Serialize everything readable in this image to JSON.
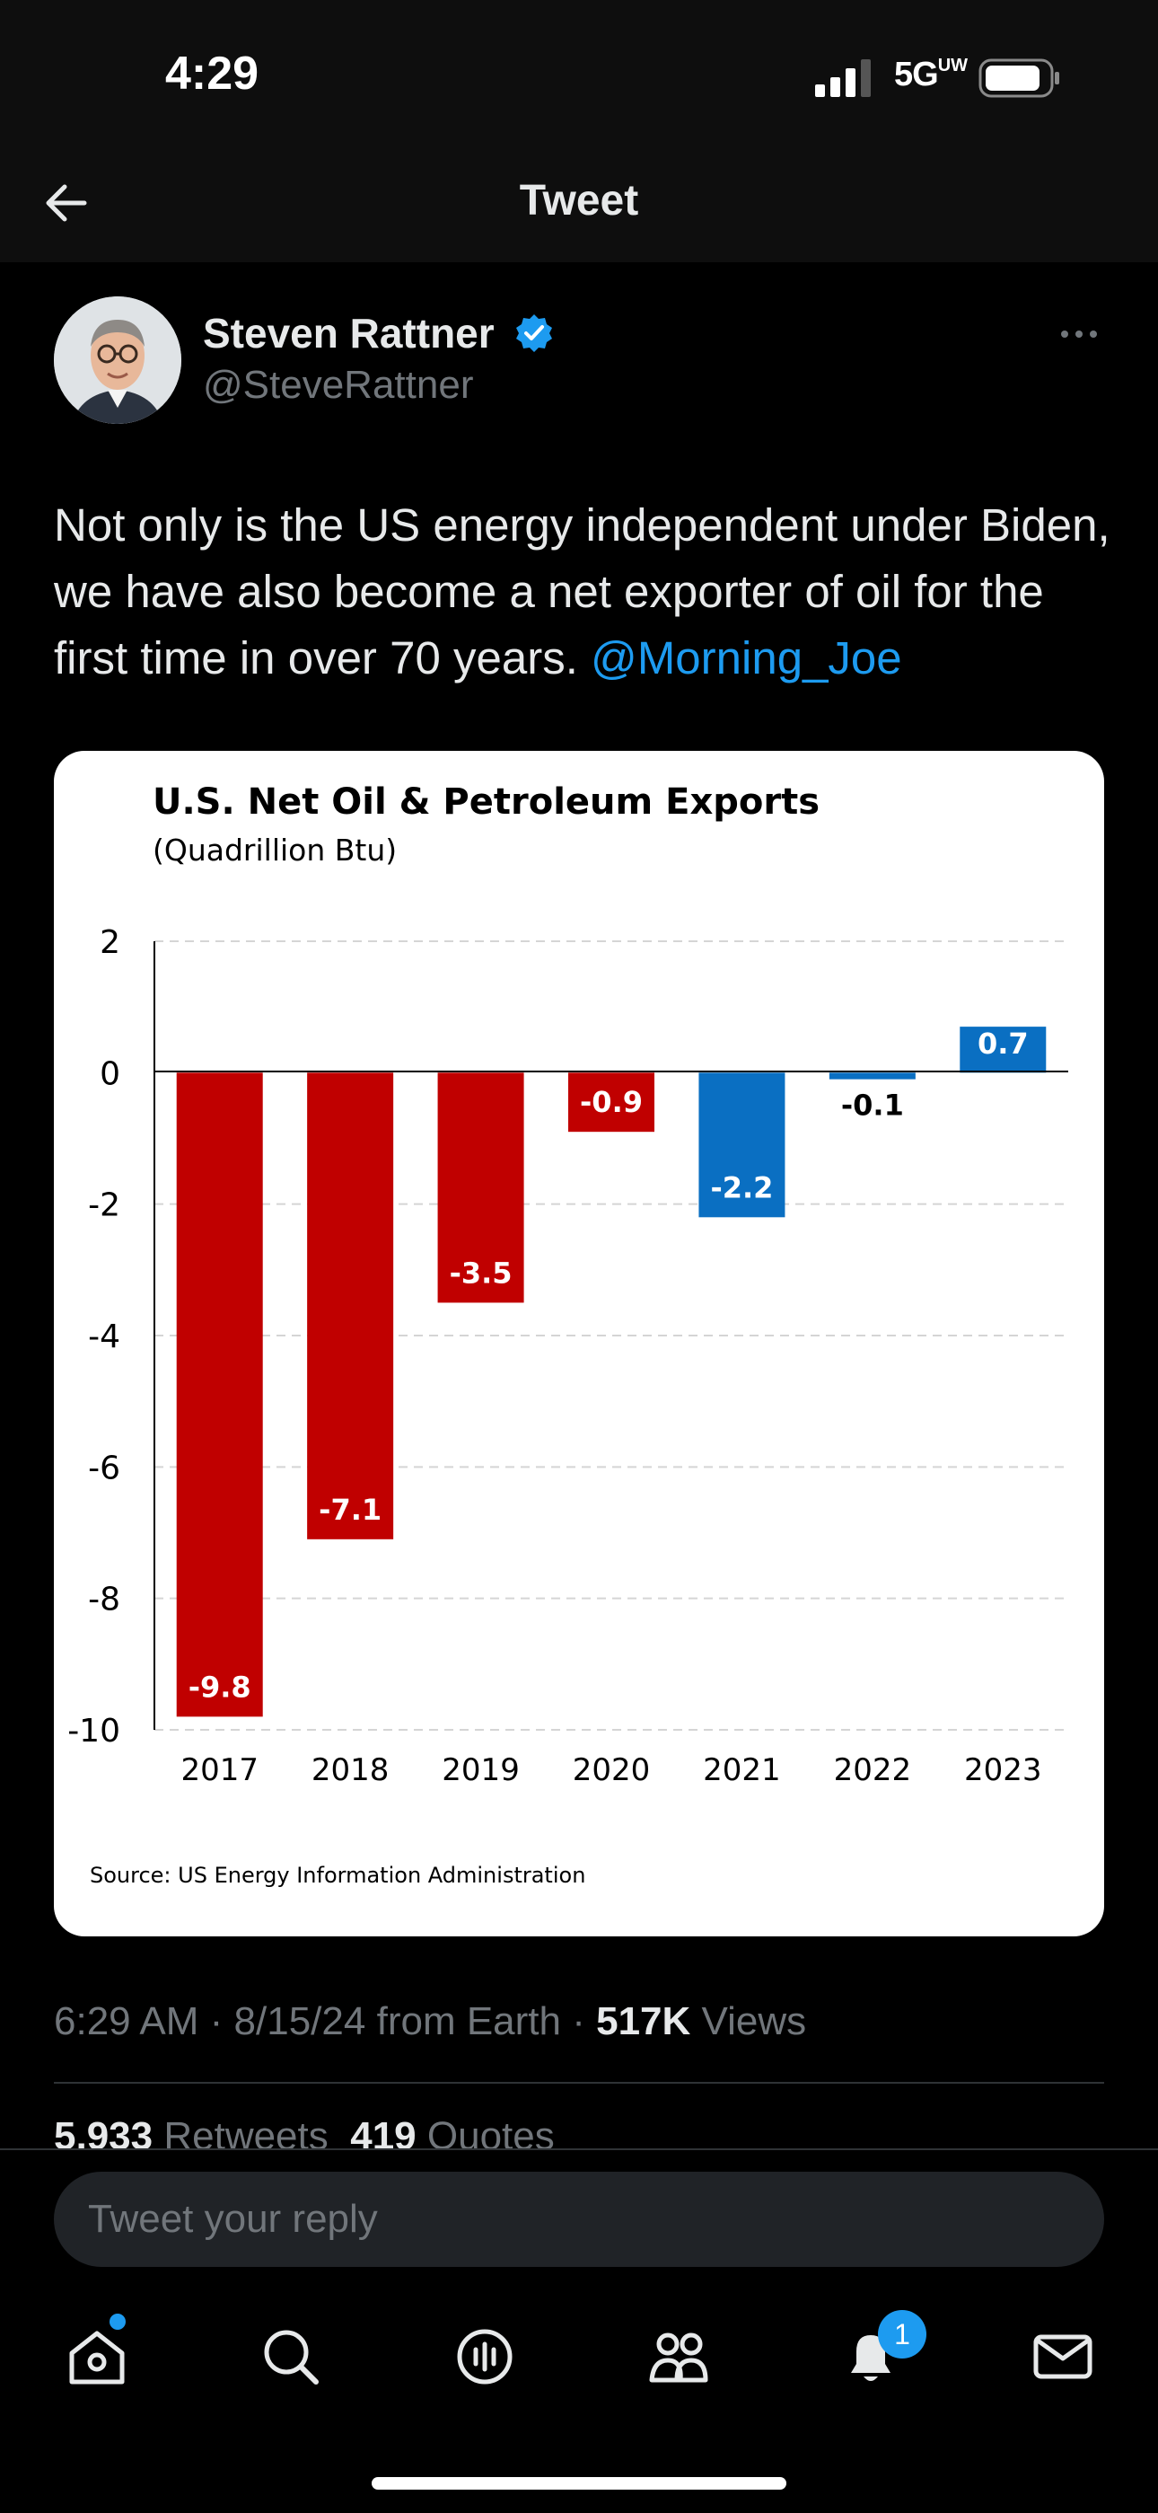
{
  "status_bar": {
    "time": "4:29",
    "network": "5G",
    "network_sup": "UW"
  },
  "header": {
    "title": "Tweet"
  },
  "author": {
    "name": "Steven Rattner",
    "handle": "@SteveRattner"
  },
  "tweet": {
    "text": "Not only is the US energy independent under Biden, we have also become a net exporter of oil for the first time in over 70 years.",
    "mention": "@Morning_Joe"
  },
  "chart_data": {
    "type": "bar",
    "title": "U.S. Net Oil & Petroleum Exports",
    "subtitle": "(Quadrillion Btu)",
    "categories": [
      "2017",
      "2018",
      "2019",
      "2020",
      "2021",
      "2022",
      "2023"
    ],
    "values": [
      -9.8,
      -7.1,
      -3.5,
      -0.9,
      -2.2,
      -0.1,
      0.7
    ],
    "value_labels": [
      "-9.8",
      "-7.1",
      "-3.5",
      "-0.9",
      "-2.2",
      "-0.1",
      "0.7"
    ],
    "bar_colors": [
      "#c00000",
      "#c00000",
      "#c00000",
      "#c00000",
      "#0a6fc2",
      "#0a6fc2",
      "#0a6fc2"
    ],
    "ylim": [
      -10,
      2
    ],
    "yticks": [
      "2",
      "0",
      "-2",
      "-4",
      "-6",
      "-8",
      "-10"
    ],
    "ytick_values": [
      2,
      0,
      -2,
      -4,
      -6,
      -8,
      -10
    ],
    "grid": "dashed horizontal",
    "source": "Source: US Energy Information Administration"
  },
  "meta": {
    "time": "6:29 AM",
    "date": "8/15/24",
    "from": "from Earth",
    "views_count": "517K",
    "views_label": "Views"
  },
  "stats": {
    "retweets_count": "5,933",
    "retweets_label": "Retweets",
    "quotes_count": "419",
    "quotes_label": "Quotes"
  },
  "reply": {
    "placeholder": "Tweet your reply"
  },
  "nav": {
    "items": [
      "home-icon",
      "search-icon",
      "spaces-icon",
      "communities-icon",
      "notifications-icon",
      "messages-icon"
    ],
    "notifications_badge": "1"
  },
  "colors": {
    "accent": "#1d9bf0",
    "negative_bar": "#c00000",
    "positive_bar": "#0a6fc2"
  }
}
